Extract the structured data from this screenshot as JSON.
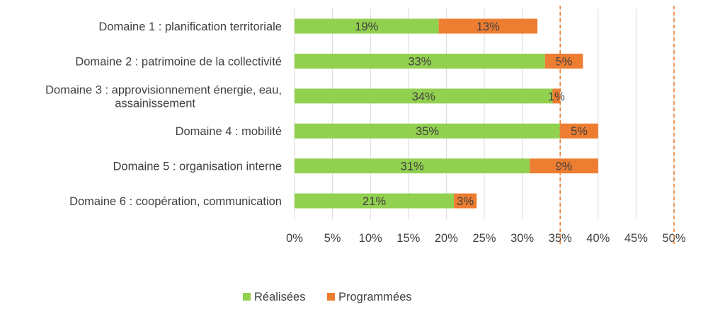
{
  "chart_data": {
    "type": "bar",
    "orientation": "horizontal",
    "stacked": true,
    "categories": [
      [
        "Domaine 1 : planification territoriale"
      ],
      [
        "Domaine 2 : patrimoine de la collectivité"
      ],
      [
        "Domaine 3 : approvisionnement énergie, eau,",
        "assainissement"
      ],
      [
        "Domaine 4 : mobilité"
      ],
      [
        "Domaine 5 : organisation interne"
      ],
      [
        "Domaine 6 : coopération, communication"
      ]
    ],
    "series": [
      {
        "name": "Réalisées",
        "color": "#92d050",
        "values": [
          19,
          33,
          34,
          35,
          31,
          21
        ],
        "labels": [
          "19%",
          "33%",
          "34%",
          "35%",
          "31%",
          "21%"
        ]
      },
      {
        "name": "Programmées",
        "color": "#ed7d31",
        "values": [
          13,
          5,
          1,
          5,
          9,
          3
        ],
        "labels": [
          "13%",
          "5%",
          "1%",
          "5%",
          "9%",
          "3%"
        ]
      }
    ],
    "xlim": [
      0,
      50
    ],
    "xticks": [
      "0%",
      "5%",
      "10%",
      "15%",
      "20%",
      "25%",
      "30%",
      "35%",
      "40%",
      "45%",
      "50%"
    ],
    "reference_lines": [
      35,
      50
    ],
    "reference_line_color": "#ed7d31",
    "grid": true,
    "legend": "bottom"
  }
}
